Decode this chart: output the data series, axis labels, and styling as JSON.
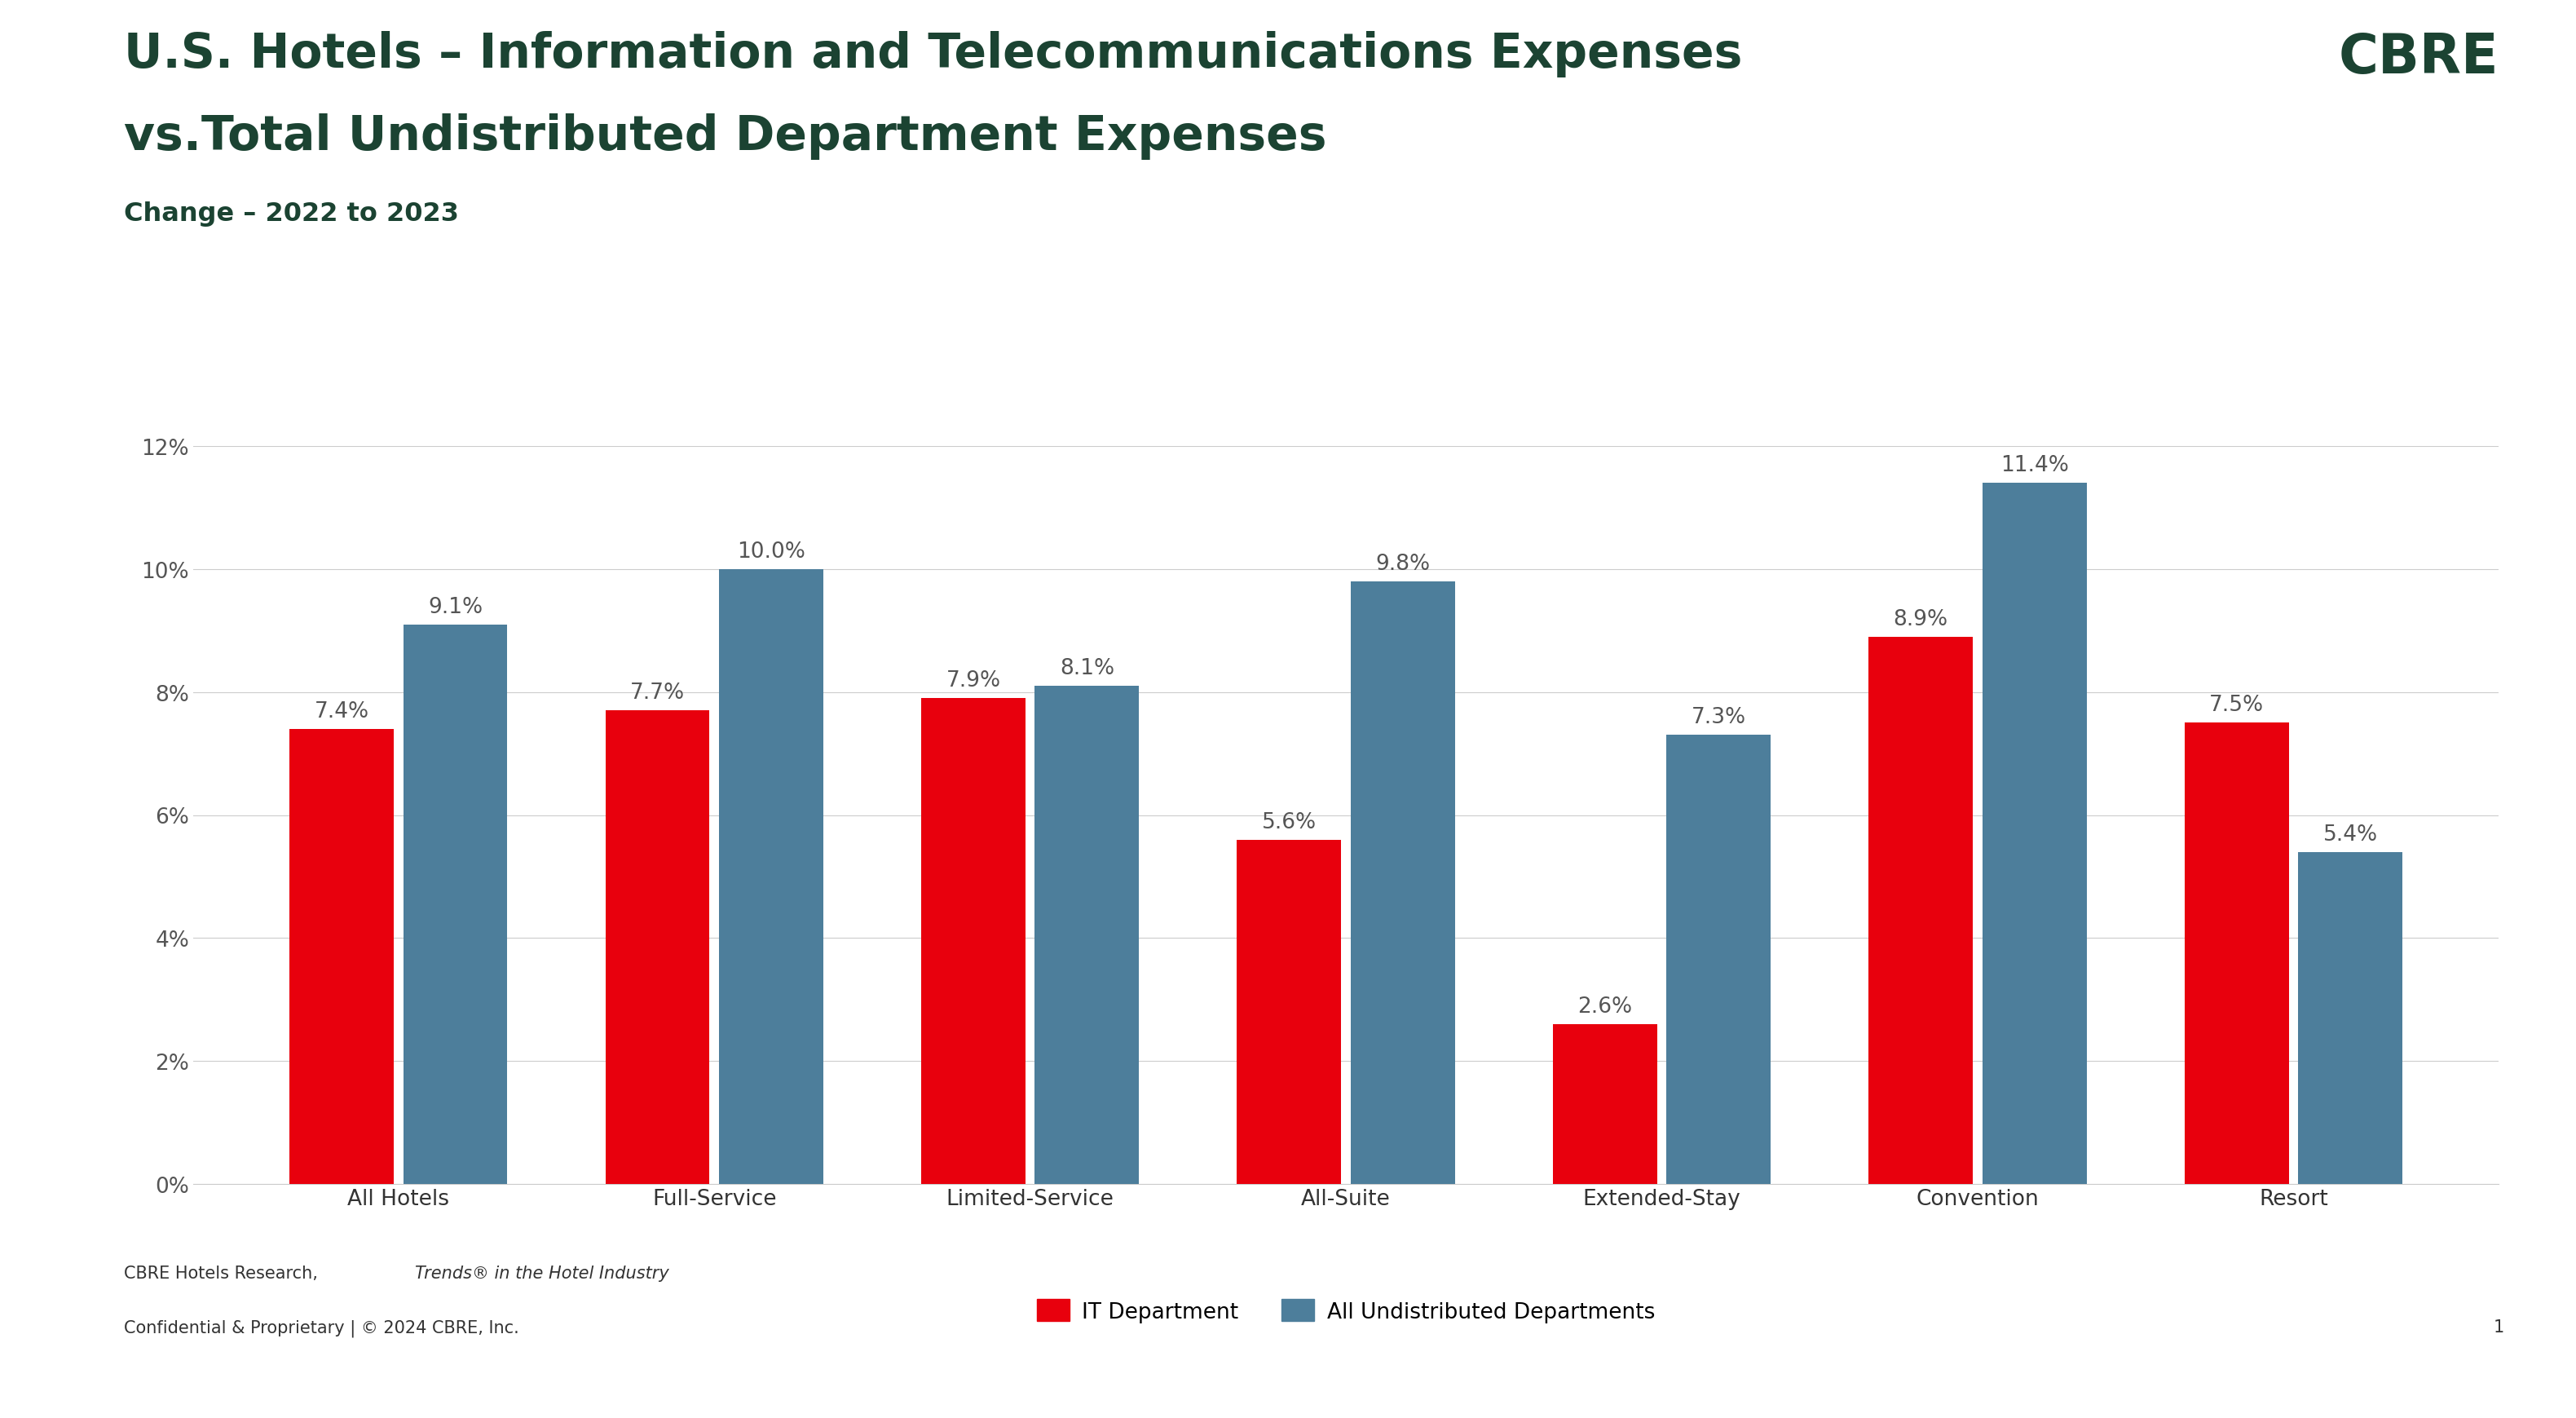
{
  "title_line1": "U.S. Hotels – Information and Telecommunications Expenses",
  "title_line2": "vs.Total Undistributed Department Expenses",
  "subtitle": "Change – 2022 to 2023",
  "cbre_text": "CBRE",
  "categories": [
    "All Hotels",
    "Full-Service",
    "Limited-Service",
    "All-Suite",
    "Extended-Stay",
    "Convention",
    "Resort"
  ],
  "it_values": [
    7.4,
    7.7,
    7.9,
    5.6,
    2.6,
    8.9,
    7.5
  ],
  "all_values": [
    9.1,
    10.0,
    8.1,
    9.8,
    7.3,
    11.4,
    5.4
  ],
  "it_color": "#E8000D",
  "all_color": "#4D7E9B",
  "it_label": "IT Department",
  "all_label": "All Undistributed Departments",
  "ylim": [
    0,
    12
  ],
  "yticks": [
    0,
    2,
    4,
    6,
    8,
    10,
    12
  ],
  "ytick_labels": [
    "0%",
    "2%",
    "4%",
    "6%",
    "8%",
    "10%",
    "12%"
  ],
  "title_color": "#1B4332",
  "subtitle_color": "#1B4332",
  "cbre_color": "#1B4332",
  "bar_label_color": "#555555",
  "footer_line1_normal": "CBRE Hotels Research, ",
  "footer_line1_italic": "Trends® in the Hotel Industry",
  "footer_line2": "Confidential & Proprietary | © 2024 CBRE, Inc.",
  "footer_page": "1",
  "background_color": "#FFFFFF",
  "left_bar_color": "#00C170",
  "grid_color": "#CCCCCC",
  "title_fontsize": 42,
  "subtitle_fontsize": 23,
  "bar_label_fontsize": 19,
  "tick_fontsize": 19,
  "legend_fontsize": 19,
  "footer_fontsize": 15,
  "cbre_fontsize": 48
}
